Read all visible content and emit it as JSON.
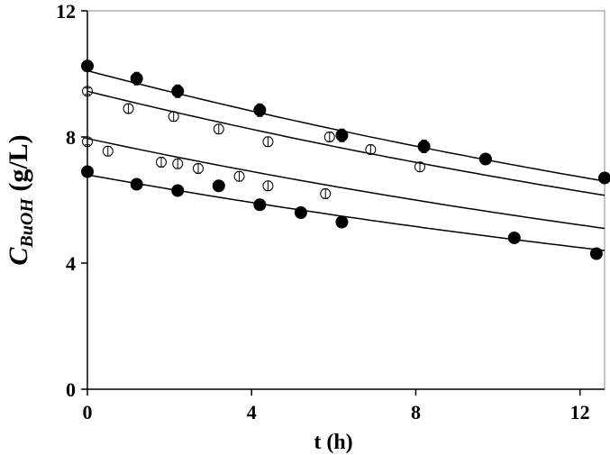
{
  "chart_data": {
    "type": "scatter",
    "title": "",
    "xlabel": "t (h)",
    "ylabel": {
      "main": "C",
      "subscript": "BuOH",
      "unit": " (g/L)"
    },
    "xlim": [
      0,
      12.6
    ],
    "ylim": [
      0,
      12
    ],
    "xticks": [
      0,
      4,
      8,
      12
    ],
    "yticks": [
      0,
      4,
      8,
      12
    ],
    "grid": false,
    "legend": "none",
    "series": [
      {
        "marker": "filled-circle",
        "x": [
          0,
          1.2,
          2.2,
          4.2,
          6.2,
          8.2,
          9.7,
          12.6
        ],
        "y": [
          10.25,
          9.85,
          9.45,
          8.85,
          8.05,
          7.7,
          7.3,
          6.7
        ],
        "err": [
          0.15,
          0.2,
          0.2,
          0.2,
          0.2,
          0.2,
          0.1,
          0.1
        ]
      },
      {
        "marker": "open-circle",
        "x": [
          0,
          1.0,
          2.1,
          3.2,
          4.4,
          5.9,
          6.9,
          8.1
        ],
        "y": [
          9.45,
          8.9,
          8.65,
          8.25,
          7.85,
          8.0,
          7.6,
          7.05
        ],
        "err": [
          0.1,
          0.15,
          0.15,
          0.15,
          0.15,
          0.15,
          0.15,
          0.15
        ]
      },
      {
        "marker": "open-circle",
        "x": [
          0,
          0.5,
          1.8,
          2.2,
          2.7,
          3.7,
          4.4,
          5.8
        ],
        "y": [
          7.85,
          7.55,
          7.2,
          7.15,
          7.0,
          6.75,
          6.45,
          6.2
        ],
        "err": [
          0.1,
          0.15,
          0.15,
          0.15,
          0.15,
          0.15,
          0.15,
          0.15
        ]
      },
      {
        "marker": "filled-circle",
        "x": [
          0,
          1.2,
          2.2,
          3.2,
          4.2,
          5.2,
          6.2,
          10.4,
          12.4
        ],
        "y": [
          6.9,
          6.5,
          6.3,
          6.45,
          5.85,
          5.6,
          5.3,
          4.8,
          4.3
        ],
        "err": [
          0.05,
          0.05,
          0.05,
          0.05,
          0.05,
          0.05,
          0.05,
          0.05,
          0.05
        ]
      }
    ],
    "fit_curves": [
      {
        "x": [
          0,
          12.6
        ],
        "y0": 10.1,
        "y1": 6.6
      },
      {
        "x": [
          0,
          12.6
        ],
        "y0": 9.45,
        "y1": 6.15
      },
      {
        "x": [
          0,
          12.6
        ],
        "y0": 7.95,
        "y1": 5.1
      },
      {
        "x": [
          0,
          12.6
        ],
        "y0": 6.8,
        "y1": 4.4
      }
    ],
    "colors": {
      "axis": "#000000",
      "marker_fill": "#000000",
      "open_marker_fill": "#ffffff"
    }
  }
}
